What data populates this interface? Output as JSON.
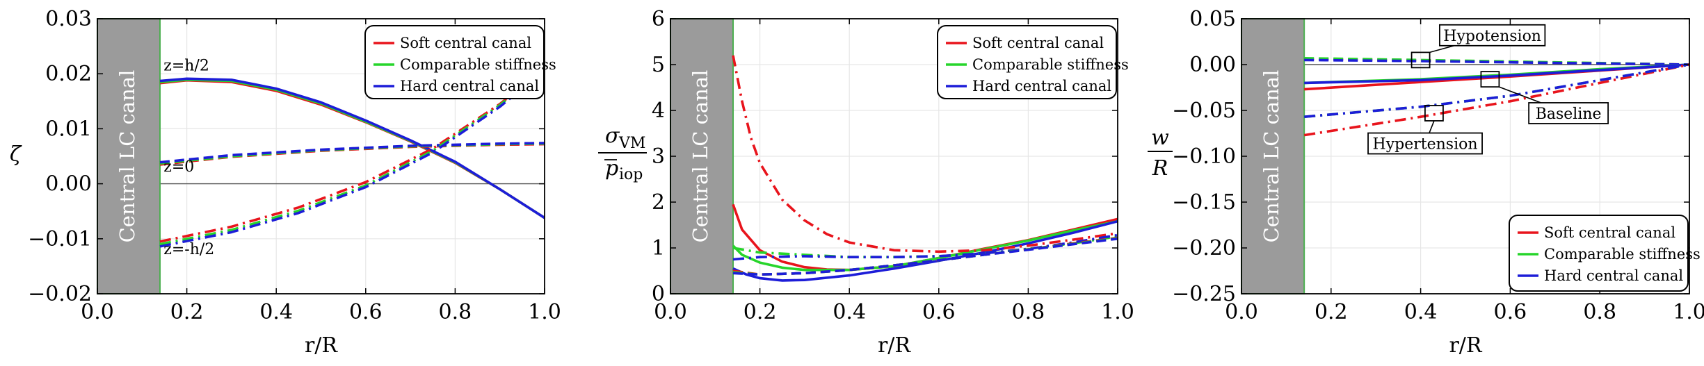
{
  "chart_data": [
    {
      "type": "line",
      "panel": "zeta",
      "xlabel": "r/R",
      "ylabel": "ζ",
      "xlim": [
        0.0,
        1.0
      ],
      "ylim": [
        -0.02,
        0.03
      ],
      "xticks": [
        0.0,
        0.2,
        0.4,
        0.6,
        0.8,
        1.0
      ],
      "xtick_labels": [
        "0.0",
        "0.2",
        "0.4",
        "0.6",
        "0.8",
        "1.0"
      ],
      "yticks": [
        -0.02,
        -0.01,
        0.0,
        0.01,
        0.02,
        0.03
      ],
      "ytick_labels": [
        "−0.02",
        "−0.01",
        "0.00",
        "0.01",
        "0.02",
        "0.03"
      ],
      "canal_label": "Central LC canal",
      "canal_extent": [
        0.0,
        0.14
      ],
      "legend_position": "top-right",
      "legend": [
        "Soft central canal",
        "Comparable stiffness",
        "Hard central canal"
      ],
      "colors": [
        "#e8141c",
        "#27d52b",
        "#1d1dd8"
      ],
      "annotations": [
        {
          "text": "z=h/2",
          "x": 0.145,
          "y": 0.0206
        },
        {
          "text": "z=0",
          "x": 0.145,
          "y": 0.0022
        },
        {
          "text": "z=-h/2",
          "x": 0.145,
          "y": -0.0128
        }
      ],
      "series": [
        {
          "name": "Soft central canal",
          "style": "solid",
          "x": [
            0.14,
            0.2,
            0.3,
            0.4,
            0.5,
            0.6,
            0.7,
            0.8,
            0.9,
            1.0
          ],
          "y": [
            0.0183,
            0.0188,
            0.0185,
            0.0169,
            0.0144,
            0.0112,
            0.0077,
            0.0038,
            -0.001,
            -0.0062
          ]
        },
        {
          "name": "Comparable stiffness",
          "style": "solid",
          "x": [
            0.14,
            0.2,
            0.3,
            0.4,
            0.5,
            0.6,
            0.7,
            0.8,
            0.9,
            1.0
          ],
          "y": [
            0.0185,
            0.0189,
            0.0187,
            0.0171,
            0.0146,
            0.0113,
            0.0078,
            0.0039,
            -0.001,
            -0.0062
          ]
        },
        {
          "name": "Hard central canal",
          "style": "solid",
          "x": [
            0.14,
            0.2,
            0.3,
            0.4,
            0.5,
            0.6,
            0.7,
            0.8,
            0.9,
            1.0
          ],
          "y": [
            0.0187,
            0.0191,
            0.0189,
            0.0173,
            0.0148,
            0.0115,
            0.0079,
            0.004,
            -0.001,
            -0.0062
          ]
        },
        {
          "name": "Soft central canal",
          "style": "dashed",
          "x": [
            0.14,
            0.3,
            0.5,
            0.7,
            0.9,
            1.0
          ],
          "y": [
            0.0035,
            0.0049,
            0.006,
            0.0067,
            0.0071,
            0.0072
          ]
        },
        {
          "name": "Comparable stiffness",
          "style": "dashed",
          "x": [
            0.14,
            0.3,
            0.5,
            0.7,
            0.9,
            1.0
          ],
          "y": [
            0.0037,
            0.005,
            0.0061,
            0.0068,
            0.0072,
            0.0073
          ]
        },
        {
          "name": "Hard central canal",
          "style": "dashed",
          "x": [
            0.14,
            0.3,
            0.5,
            0.7,
            0.9,
            1.0
          ],
          "y": [
            0.0039,
            0.0052,
            0.0062,
            0.0069,
            0.0073,
            0.0074
          ]
        },
        {
          "name": "Soft central canal",
          "style": "dashdot",
          "x": [
            0.14,
            0.3,
            0.45,
            0.6,
            0.75,
            0.9,
            1.0
          ],
          "y": [
            -0.0105,
            -0.0078,
            -0.0043,
            0.0003,
            0.0064,
            0.0145,
            0.021
          ]
        },
        {
          "name": "Comparable stiffness",
          "style": "dashdot",
          "x": [
            0.14,
            0.3,
            0.45,
            0.6,
            0.75,
            0.9,
            1.0
          ],
          "y": [
            -0.011,
            -0.0084,
            -0.0049,
            -0.0003,
            0.006,
            0.0143,
            0.0208
          ]
        },
        {
          "name": "Hard central canal",
          "style": "dashdot",
          "x": [
            0.14,
            0.3,
            0.45,
            0.6,
            0.75,
            0.9,
            1.0
          ],
          "y": [
            -0.0114,
            -0.0088,
            -0.0053,
            -0.0006,
            0.0057,
            0.014,
            0.0206
          ]
        }
      ]
    },
    {
      "type": "line",
      "panel": "sigma",
      "xlabel": "r/R",
      "ylabel_num": "σ",
      "ylabel_num_sub": "VM",
      "ylabel_den": "p",
      "ylabel_den_sub": "iop",
      "xlim": [
        0.0,
        1.0
      ],
      "ylim": [
        0,
        6
      ],
      "xticks": [
        0.0,
        0.2,
        0.4,
        0.6,
        0.8,
        1.0
      ],
      "xtick_labels": [
        "0.0",
        "0.2",
        "0.4",
        "0.6",
        "0.8",
        "1.0"
      ],
      "yticks": [
        0,
        1,
        2,
        3,
        4,
        5,
        6
      ],
      "ytick_labels": [
        "0",
        "1",
        "2",
        "3",
        "4",
        "5",
        "6"
      ],
      "canal_label": "Central LC canal",
      "canal_extent": [
        0.0,
        0.14
      ],
      "legend_position": "top-right",
      "legend": [
        "Soft central canal",
        "Comparable stiffness",
        "Hard central canal"
      ],
      "colors": [
        "#e8141c",
        "#27d52b",
        "#1d1dd8"
      ],
      "series": [
        {
          "name": "Soft central canal",
          "style": "solid",
          "x": [
            0.14,
            0.16,
            0.2,
            0.25,
            0.3,
            0.35,
            0.4,
            0.5,
            0.6,
            0.7,
            0.8,
            0.9,
            1.0
          ],
          "y": [
            1.95,
            1.4,
            0.95,
            0.7,
            0.58,
            0.53,
            0.52,
            0.6,
            0.78,
            0.98,
            1.17,
            1.4,
            1.63
          ]
        },
        {
          "name": "Comparable stiffness",
          "style": "solid",
          "x": [
            0.14,
            0.16,
            0.2,
            0.25,
            0.3,
            0.4,
            0.5,
            0.6,
            0.7,
            0.8,
            0.9,
            1.0
          ],
          "y": [
            1.05,
            0.85,
            0.68,
            0.57,
            0.52,
            0.52,
            0.6,
            0.78,
            0.97,
            1.16,
            1.38,
            1.58
          ]
        },
        {
          "name": "Hard central canal",
          "style": "solid",
          "x": [
            0.14,
            0.17,
            0.2,
            0.25,
            0.3,
            0.4,
            0.5,
            0.6,
            0.7,
            0.8,
            0.9,
            1.0
          ],
          "y": [
            0.55,
            0.42,
            0.34,
            0.29,
            0.3,
            0.4,
            0.55,
            0.72,
            0.9,
            1.1,
            1.33,
            1.58
          ]
        },
        {
          "name": "Soft central canal",
          "style": "dashdot",
          "x": [
            0.14,
            0.16,
            0.18,
            0.2,
            0.25,
            0.3,
            0.35,
            0.4,
            0.5,
            0.6,
            0.7,
            0.8,
            0.9,
            1.0
          ],
          "y": [
            5.2,
            4.2,
            3.4,
            2.85,
            2.05,
            1.6,
            1.3,
            1.12,
            0.95,
            0.92,
            0.95,
            1.05,
            1.18,
            1.32
          ]
        },
        {
          "name": "Comparable stiffness",
          "style": "dashdot",
          "x": [
            0.14,
            0.2,
            0.3,
            0.4,
            0.5,
            0.6,
            0.7,
            0.8,
            0.9,
            1.0
          ],
          "y": [
            1.0,
            0.9,
            0.85,
            0.8,
            0.8,
            0.82,
            0.88,
            0.98,
            1.1,
            1.25
          ]
        },
        {
          "name": "Hard central canal",
          "style": "dashdot",
          "x": [
            0.14,
            0.2,
            0.3,
            0.4,
            0.5,
            0.6,
            0.7,
            0.8,
            0.9,
            1.0
          ],
          "y": [
            0.75,
            0.8,
            0.82,
            0.8,
            0.8,
            0.82,
            0.88,
            0.98,
            1.12,
            1.28
          ]
        },
        {
          "name": "Soft central canal",
          "style": "dashed",
          "x": [
            0.14,
            0.2,
            0.3,
            0.4,
            0.5,
            0.6,
            0.7,
            0.8,
            0.9,
            1.0
          ],
          "y": [
            0.5,
            0.42,
            0.45,
            0.52,
            0.62,
            0.73,
            0.85,
            0.97,
            1.1,
            1.22
          ]
        },
        {
          "name": "Comparable stiffness",
          "style": "dashed",
          "x": [
            0.14,
            0.2,
            0.3,
            0.4,
            0.5,
            0.6,
            0.7,
            0.8,
            0.9,
            1.0
          ],
          "y": [
            0.47,
            0.42,
            0.45,
            0.52,
            0.62,
            0.73,
            0.85,
            0.97,
            1.09,
            1.21
          ]
        },
        {
          "name": "Hard central canal",
          "style": "dashed",
          "x": [
            0.14,
            0.2,
            0.3,
            0.4,
            0.5,
            0.6,
            0.7,
            0.8,
            0.9,
            1.0
          ],
          "y": [
            0.45,
            0.42,
            0.45,
            0.52,
            0.62,
            0.73,
            0.85,
            0.96,
            1.08,
            1.2
          ]
        }
      ]
    },
    {
      "type": "line",
      "panel": "w",
      "xlabel": "r/R",
      "ylabel_num": "w",
      "ylabel_den": "R",
      "xlim": [
        0.0,
        1.0
      ],
      "ylim": [
        -0.25,
        0.05
      ],
      "xticks": [
        0.0,
        0.2,
        0.4,
        0.6,
        0.8,
        1.0
      ],
      "xtick_labels": [
        "0.0",
        "0.2",
        "0.4",
        "0.6",
        "0.8",
        "1.0"
      ],
      "yticks": [
        -0.25,
        -0.2,
        -0.15,
        -0.1,
        -0.05,
        0.0,
        0.05
      ],
      "ytick_labels": [
        "−0.25",
        "−0.20",
        "−0.15",
        "−0.10",
        "−0.05",
        "0.00",
        "0.05"
      ],
      "canal_label": "Central LC canal",
      "canal_extent": [
        0.0,
        0.14
      ],
      "legend_position": "bottom-right",
      "legend": [
        "Soft central canal",
        "Comparable stiffness",
        "Hard central canal"
      ],
      "colors": [
        "#e8141c",
        "#27d52b",
        "#1d1dd8"
      ],
      "annotations": [
        {
          "text": "Hypotension",
          "box_at": [
            0.4,
            0.005
          ],
          "label_at": [
            0.56,
            0.032
          ]
        },
        {
          "text": "Baseline",
          "box_at": [
            0.555,
            -0.016
          ],
          "label_at": [
            0.73,
            -0.053
          ]
        },
        {
          "text": "Hypertension",
          "box_at": [
            0.43,
            -0.053
          ],
          "label_at": [
            0.41,
            -0.086
          ]
        }
      ],
      "series": [
        {
          "name": "Soft central canal",
          "style": "dashed",
          "x": [
            0.14,
            0.4,
            0.7,
            1.0
          ],
          "y": [
            0.006,
            0.0045,
            0.002,
            0.0
          ]
        },
        {
          "name": "Comparable stiffness",
          "style": "dashed",
          "x": [
            0.14,
            0.4,
            0.7,
            1.0
          ],
          "y": [
            0.007,
            0.005,
            0.0025,
            0.0
          ]
        },
        {
          "name": "Hard central canal",
          "style": "dashed",
          "x": [
            0.14,
            0.4,
            0.7,
            1.0
          ],
          "y": [
            0.005,
            0.0038,
            0.0018,
            0.0
          ]
        },
        {
          "name": "Soft central canal",
          "style": "solid",
          "x": [
            0.14,
            0.4,
            0.6,
            0.8,
            1.0
          ],
          "y": [
            -0.027,
            -0.019,
            -0.013,
            -0.0065,
            0.0
          ]
        },
        {
          "name": "Comparable stiffness",
          "style": "solid",
          "x": [
            0.14,
            0.4,
            0.6,
            0.8,
            1.0
          ],
          "y": [
            -0.02,
            -0.016,
            -0.011,
            -0.005,
            0.0
          ]
        },
        {
          "name": "Hard central canal",
          "style": "solid",
          "x": [
            0.14,
            0.4,
            0.6,
            0.8,
            1.0
          ],
          "y": [
            -0.02,
            -0.017,
            -0.012,
            -0.006,
            0.0
          ]
        },
        {
          "name": "Soft central canal",
          "style": "dashdot",
          "x": [
            0.14,
            0.4,
            0.6,
            0.8,
            1.0
          ],
          "y": [
            -0.077,
            -0.057,
            -0.04,
            -0.02,
            0.0
          ]
        },
        {
          "name": "Comparable stiffness",
          "style": "dashdot",
          "x": [
            0.14,
            0.4,
            0.6,
            0.8,
            1.0
          ],
          "y": [
            -0.057,
            -0.046,
            -0.034,
            -0.017,
            0.0
          ]
        },
        {
          "name": "Hard central canal",
          "style": "dashdot",
          "x": [
            0.14,
            0.4,
            0.6,
            0.8,
            1.0
          ],
          "y": [
            -0.057,
            -0.046,
            -0.034,
            -0.017,
            0.0
          ]
        }
      ]
    }
  ]
}
